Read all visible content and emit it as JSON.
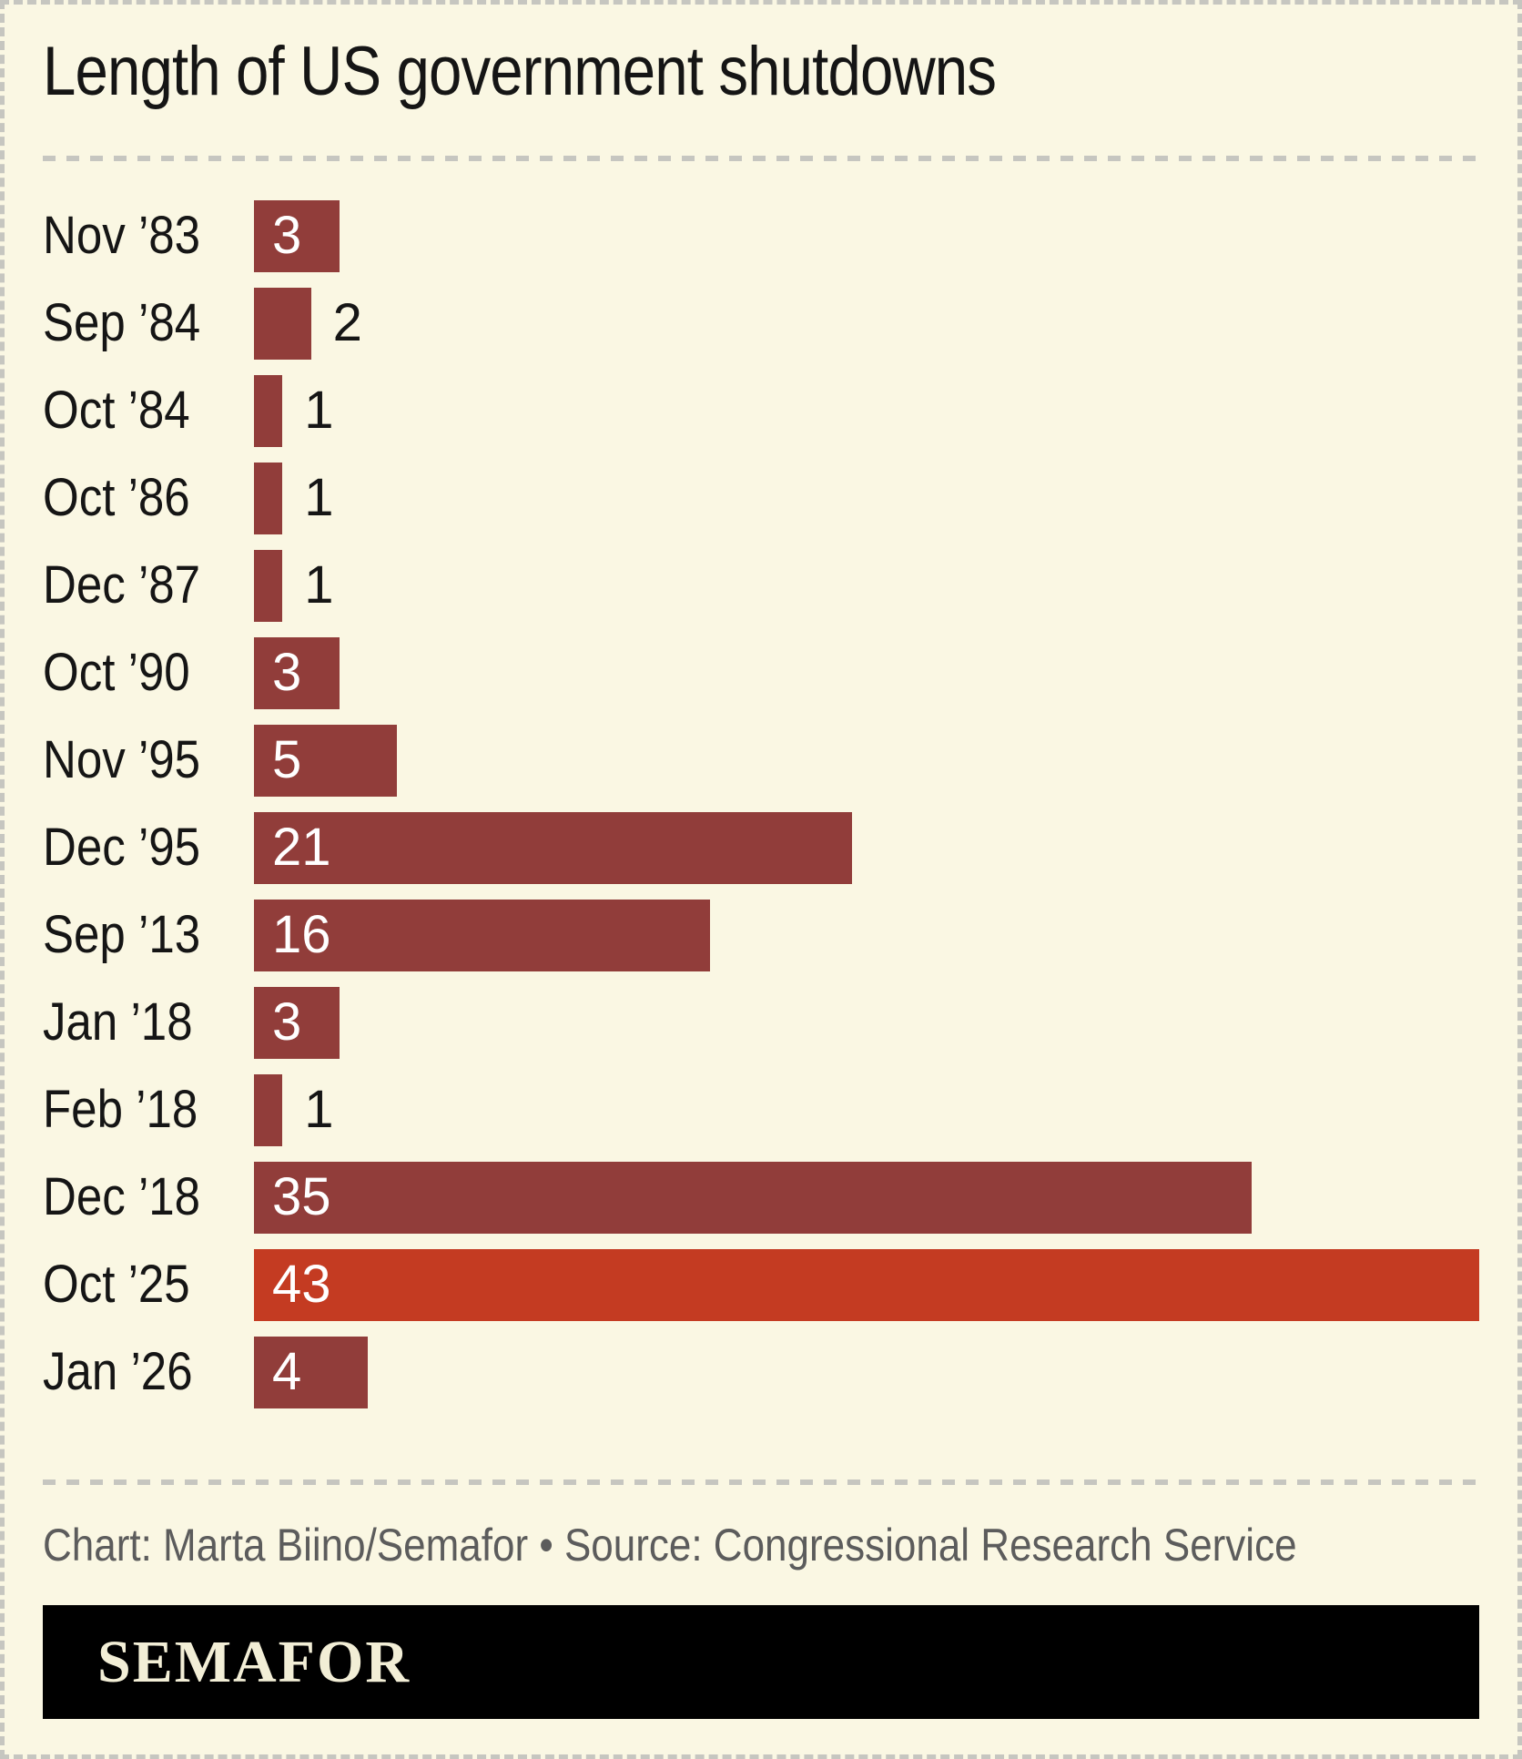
{
  "title": "Length of US government shutdowns",
  "chart_data": {
    "type": "bar",
    "orientation": "horizontal",
    "unit": "days",
    "categories": [
      "Nov ’83",
      "Sep ’84",
      "Oct ’84",
      "Oct ’86",
      "Dec ’87",
      "Oct ’90",
      "Nov ’95",
      "Dec ’95",
      "Sep ’13",
      "Jan ’18",
      "Feb ’18",
      "Dec ’18",
      "Oct ’25",
      "Jan ’26"
    ],
    "values": [
      3,
      2,
      1,
      1,
      1,
      3,
      5,
      21,
      16,
      3,
      1,
      35,
      43,
      4
    ],
    "xlim": [
      0,
      43
    ],
    "highlight_index": 12,
    "value_labels": "on-bars",
    "grid": "off",
    "legend": "none",
    "colors": {
      "bar": "#913d3a",
      "highlight": "#c43b22"
    }
  },
  "footer": {
    "attribution": "Chart: Marta Biino/Semafor • Source: Congressional Research Service"
  },
  "logo": {
    "text": "SEMAFOR"
  },
  "theme": {
    "background": "#faf7e3",
    "text": "#151515",
    "muted_text": "#5c5c5c",
    "dash": "#c6c6c0",
    "logo_bg": "#000000",
    "logo_text": "#f2eed6"
  }
}
